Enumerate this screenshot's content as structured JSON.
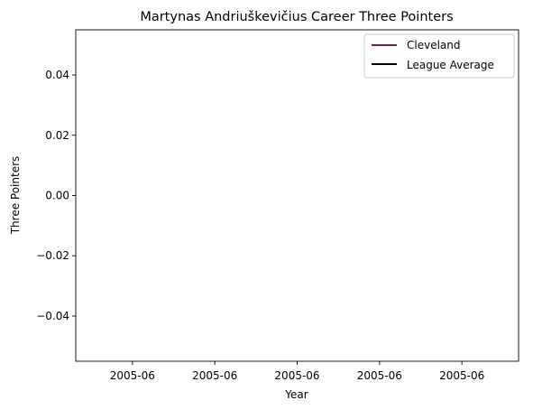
{
  "chart_data": {
    "type": "line",
    "title": "Martynas Andriuškevičius Career Three Pointers",
    "xlabel": "Year",
    "ylabel": "Three Pointers",
    "x_tick_labels": [
      "2005-06",
      "2005-06",
      "2005-06",
      "2005-06",
      "2005-06"
    ],
    "y_ticks": [
      -0.04,
      -0.02,
      0.0,
      0.02,
      0.04
    ],
    "y_tick_labels": [
      "−0.04",
      "−0.02",
      "0.00",
      "0.02",
      "0.04"
    ],
    "ylim": [
      -0.055,
      0.055
    ],
    "grid": false,
    "legend_position": "top-right",
    "series": [
      {
        "name": "Cleveland",
        "color": "#6f263d",
        "x": [],
        "values": []
      },
      {
        "name": "League Average",
        "color": "#000000",
        "x": [],
        "values": []
      }
    ]
  }
}
